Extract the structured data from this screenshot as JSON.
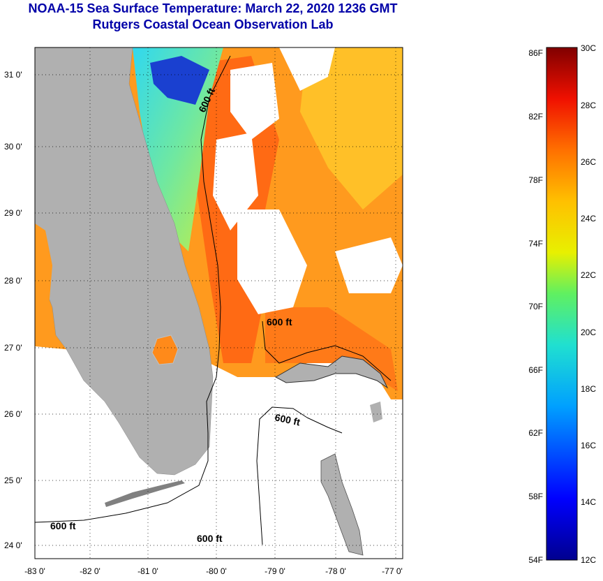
{
  "header": {
    "title": "NOAA-15 Sea Surface Temperature:  March 22, 2020 1236 GMT",
    "subtitle": "Rutgers Coastal Ocean Observation Lab"
  },
  "map": {
    "lat_labels": [
      "31 0'",
      "30 0'",
      "29 0'",
      "28 0'",
      "27 0'",
      "26 0'",
      "25 0'",
      "24 0'"
    ],
    "lon_labels": [
      "-83 0'",
      "-82 0'",
      "-81 0'",
      "-80 0'",
      "-79 0'",
      "-78 0'",
      "-77 0'"
    ],
    "contour_labels": [
      "600 ft",
      "600 ft",
      "600 ft",
      "600 ft",
      "600 ft"
    ]
  },
  "colorbar": {
    "fahrenheit": [
      "86F",
      "82F",
      "78F",
      "74F",
      "70F",
      "66F",
      "62F",
      "58F",
      "54F"
    ],
    "celsius": [
      "30C",
      "28C",
      "26C",
      "24C",
      "22C",
      "20C",
      "18C",
      "16C",
      "14C",
      "12C"
    ]
  },
  "colors": {
    "title": "#0000a8",
    "land": "#b0b0b0",
    "ocean_warm": "#ff6a14",
    "ocean_mid": "#ffb020",
    "ocean_cool": "#2ad8c0"
  }
}
